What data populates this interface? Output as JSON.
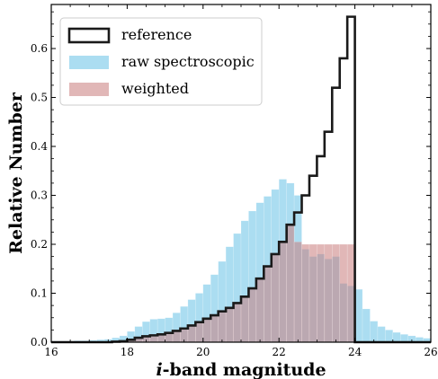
{
  "chart_data": {
    "type": "bar",
    "xlabel": "i-band magnitude",
    "xlabel_prefix": "i",
    "xlabel_suffix": "-band magnitude",
    "ylabel": "Relative Number",
    "xlim": [
      16,
      26
    ],
    "ylim": [
      0,
      0.69
    ],
    "xticks": [
      16,
      18,
      20,
      22,
      24,
      26
    ],
    "yticks": [
      0.0,
      0.1,
      0.2,
      0.3,
      0.4,
      0.5,
      0.6
    ],
    "ytick_labels": [
      "0.0",
      "0.1",
      "0.2",
      "0.3",
      "0.4",
      "0.5",
      "0.6"
    ],
    "legend_position": "top-left",
    "bin_edges": [
      16.0,
      16.2,
      16.4,
      16.6,
      16.8,
      17.0,
      17.2,
      17.4,
      17.6,
      17.8,
      18.0,
      18.2,
      18.4,
      18.6,
      18.8,
      19.0,
      19.2,
      19.4,
      19.6,
      19.8,
      20.0,
      20.2,
      20.4,
      20.6,
      20.8,
      21.0,
      21.2,
      21.4,
      21.6,
      21.8,
      22.0,
      22.2,
      22.4,
      22.6,
      22.8,
      23.0,
      23.2,
      23.4,
      23.6,
      23.8,
      24.0,
      24.2,
      24.4,
      24.6,
      24.8,
      25.0,
      25.2,
      25.4,
      25.6,
      25.8,
      26.0
    ],
    "series": [
      {
        "name": "raw spectroscopic",
        "style": "filled",
        "color": "#87ceeb",
        "values": [
          0.002,
          0.002,
          0.002,
          0.003,
          0.003,
          0.004,
          0.005,
          0.006,
          0.009,
          0.013,
          0.022,
          0.032,
          0.042,
          0.047,
          0.048,
          0.05,
          0.06,
          0.073,
          0.087,
          0.1,
          0.118,
          0.138,
          0.165,
          0.195,
          0.222,
          0.248,
          0.268,
          0.285,
          0.298,
          0.312,
          0.333,
          0.325,
          0.3,
          0.19,
          0.175,
          0.18,
          0.17,
          0.175,
          0.12,
          0.115,
          0.108,
          0.068,
          0.043,
          0.032,
          0.025,
          0.02,
          0.016,
          0.013,
          0.01,
          0.008
        ]
      },
      {
        "name": "weighted",
        "style": "filled",
        "color": "#c97b7b",
        "values": [
          0,
          0,
          0,
          0,
          0,
          0,
          0,
          0,
          0.001,
          0.002,
          0.005,
          0.009,
          0.012,
          0.014,
          0.016,
          0.019,
          0.023,
          0.028,
          0.034,
          0.041,
          0.048,
          0.055,
          0.063,
          0.07,
          0.08,
          0.093,
          0.11,
          0.13,
          0.155,
          0.18,
          0.205,
          0.24,
          0.205,
          0.2,
          0.2,
          0.2,
          0.2,
          0.2,
          0.2,
          0.2,
          0,
          0,
          0,
          0,
          0,
          0,
          0,
          0,
          0,
          0
        ]
      },
      {
        "name": "reference",
        "style": "step",
        "color": "#1a1a1a",
        "values": [
          0,
          0,
          0,
          0,
          0,
          0,
          0,
          0,
          0.001,
          0.002,
          0.005,
          0.009,
          0.012,
          0.014,
          0.016,
          0.019,
          0.023,
          0.028,
          0.034,
          0.041,
          0.048,
          0.055,
          0.063,
          0.07,
          0.08,
          0.093,
          0.11,
          0.13,
          0.155,
          0.18,
          0.205,
          0.24,
          0.265,
          0.3,
          0.34,
          0.38,
          0.43,
          0.52,
          0.58,
          0.665,
          0,
          0,
          0,
          0,
          0,
          0,
          0,
          0,
          0,
          0
        ]
      }
    ]
  }
}
